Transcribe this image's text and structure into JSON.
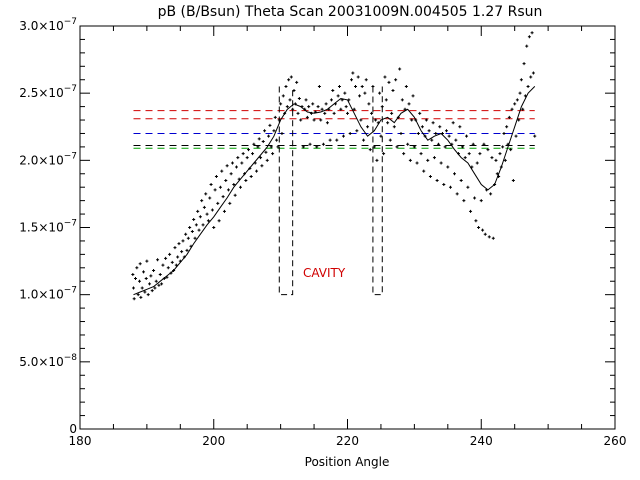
{
  "chart_data": {
    "type": "scatter",
    "title": "pB (B/Bsun) Theta Scan 20031009N.004505 1.27 Rsun",
    "xlabel": "Position Angle",
    "ylabel": "",
    "xlim": [
      180,
      260
    ],
    "ylim": [
      0,
      3e-07
    ],
    "grid": false,
    "x_ticks": [
      {
        "value": 180,
        "label": "180"
      },
      {
        "value": 200,
        "label": "200"
      },
      {
        "value": 220,
        "label": "220"
      },
      {
        "value": 240,
        "label": "240"
      },
      {
        "value": 260,
        "label": "260"
      }
    ],
    "y_ticks": [
      {
        "value": 0,
        "label": "0"
      },
      {
        "value": 5e-08,
        "label": "5.0×10"
      },
      {
        "value": 1e-07,
        "label": "1.0×10"
      },
      {
        "value": 1.5e-07,
        "label": "1.5×10"
      },
      {
        "value": 2e-07,
        "label": "2.0×10"
      },
      {
        "value": 2.5e-07,
        "label": "2.5×10"
      },
      {
        "value": 3e-07,
        "label": "3.0×10"
      }
    ],
    "y_tick_exponents": [
      "",
      "−8",
      "−7",
      "−7",
      "−7",
      "−7",
      "−7"
    ],
    "colors": {
      "axes": "#000000",
      "points": "#000000",
      "smooth_line": "#000000",
      "red": "#d00000",
      "blue": "#0000d0",
      "green": "#00a000",
      "box": "#000000"
    },
    "scatter_points": [
      [
        187.9,
        1.15e-07
      ],
      [
        188.0,
        1.05e-07
      ],
      [
        188.1,
        9.7e-08
      ],
      [
        188.3,
        1.12e-07
      ],
      [
        188.5,
        1.2e-07
      ],
      [
        188.7,
        1e-07
      ],
      [
        188.9,
        1.1e-07
      ],
      [
        189.0,
        1.23e-07
      ],
      [
        189.1,
        9.8e-08
      ],
      [
        189.3,
        1.05e-07
      ],
      [
        189.5,
        1.17e-07
      ],
      [
        189.7,
        1.02e-07
      ],
      [
        189.9,
        1.12e-07
      ],
      [
        190.0,
        1.25e-07
      ],
      [
        190.2,
        1e-07
      ],
      [
        190.4,
        1.08e-07
      ],
      [
        190.6,
        1.14e-07
      ],
      [
        190.8,
        1.03e-07
      ],
      [
        191.0,
        1.18e-07
      ],
      [
        191.2,
        1.05e-07
      ],
      [
        191.4,
        1.1e-07
      ],
      [
        191.6,
        1.26e-07
      ],
      [
        191.8,
        1.07e-07
      ],
      [
        192.0,
        1.15e-07
      ],
      [
        192.2,
        1.08e-07
      ],
      [
        192.4,
        1.22e-07
      ],
      [
        192.6,
        1.12e-07
      ],
      [
        192.8,
        1.27e-07
      ],
      [
        193.0,
        1.13e-07
      ],
      [
        193.2,
        1.2e-07
      ],
      [
        193.4,
        1.3e-07
      ],
      [
        193.6,
        1.16e-07
      ],
      [
        193.8,
        1.24e-07
      ],
      [
        194.0,
        1.18e-07
      ],
      [
        194.2,
        1.35e-07
      ],
      [
        194.4,
        1.22e-07
      ],
      [
        194.6,
        1.28e-07
      ],
      [
        194.8,
        1.38e-07
      ],
      [
        195.0,
        1.25e-07
      ],
      [
        195.2,
        1.32e-07
      ],
      [
        195.4,
        1.4e-07
      ],
      [
        195.6,
        1.28e-07
      ],
      [
        195.8,
        1.45e-07
      ],
      [
        196.0,
        1.33e-07
      ],
      [
        196.2,
        1.42e-07
      ],
      [
        196.4,
        1.5e-07
      ],
      [
        196.6,
        1.36e-07
      ],
      [
        196.8,
        1.47e-07
      ],
      [
        197.0,
        1.56e-07
      ],
      [
        197.2,
        1.42e-07
      ],
      [
        197.4,
        1.52e-07
      ],
      [
        197.6,
        1.62e-07
      ],
      [
        197.8,
        1.48e-07
      ],
      [
        198.0,
        1.58e-07
      ],
      [
        198.2,
        1.7e-07
      ],
      [
        198.4,
        1.52e-07
      ],
      [
        198.6,
        1.65e-07
      ],
      [
        198.8,
        1.75e-07
      ],
      [
        199.0,
        1.6e-07
      ],
      [
        199.2,
        1.55e-07
      ],
      [
        199.4,
        1.72e-07
      ],
      [
        199.6,
        1.82e-07
      ],
      [
        199.8,
        1.63e-07
      ],
      [
        200.0,
        1.5e-07
      ],
      [
        200.2,
        1.78e-07
      ],
      [
        200.4,
        1.88e-07
      ],
      [
        200.6,
        1.68e-07
      ],
      [
        200.8,
        1.55e-07
      ],
      [
        201.0,
        1.8e-07
      ],
      [
        201.2,
        1.92e-07
      ],
      [
        201.4,
        1.73e-07
      ],
      [
        201.6,
        1.62e-07
      ],
      [
        201.8,
        1.85e-07
      ],
      [
        202.0,
        1.96e-07
      ],
      [
        202.2,
        1.78e-07
      ],
      [
        202.4,
        1.68e-07
      ],
      [
        202.6,
        1.9e-07
      ],
      [
        202.8,
        1.98e-07
      ],
      [
        203.0,
        1.82e-07
      ],
      [
        203.2,
        1.74e-07
      ],
      [
        203.4,
        1.95e-07
      ],
      [
        203.6,
        2.02e-07
      ],
      [
        203.8,
        1.86e-07
      ],
      [
        204.0,
        1.8e-07
      ],
      [
        204.2,
        1.98e-07
      ],
      [
        204.4,
        2.05e-07
      ],
      [
        204.6,
        1.9e-07
      ],
      [
        204.8,
        1.85e-07
      ],
      [
        205.0,
        2.02e-07
      ],
      [
        205.2,
        2.08e-07
      ],
      [
        205.4,
        1.94e-07
      ],
      [
        205.6,
        1.88e-07
      ],
      [
        205.8,
        2.05e-07
      ],
      [
        206.0,
        2.12e-07
      ],
      [
        206.2,
        1.98e-07
      ],
      [
        206.4,
        1.92e-07
      ],
      [
        206.6,
        2.1e-07
      ],
      [
        206.8,
        2.16e-07
      ],
      [
        207.0,
        2.02e-07
      ],
      [
        207.2,
        1.96e-07
      ],
      [
        207.4,
        2.14e-07
      ],
      [
        207.6,
        2.22e-07
      ],
      [
        207.8,
        2.06e-07
      ],
      [
        208.0,
        2e-07
      ],
      [
        208.2,
        2.18e-07
      ],
      [
        208.4,
        2.26e-07
      ],
      [
        208.6,
        2.1e-07
      ],
      [
        208.8,
        2.05e-07
      ],
      [
        209.0,
        2.22e-07
      ],
      [
        209.2,
        2.32e-07
      ],
      [
        209.4,
        2.15e-07
      ],
      [
        209.6,
        2.1e-07
      ],
      [
        209.8,
        2.3e-07
      ],
      [
        210.0,
        2.42e-07
      ],
      [
        210.2,
        2.2e-07
      ],
      [
        210.4,
        2.48e-07
      ],
      [
        210.6,
        2.35e-07
      ],
      [
        210.8,
        2.55e-07
      ],
      [
        211.0,
        2.4e-07
      ],
      [
        211.2,
        2.6e-07
      ],
      [
        211.4,
        2.45e-07
      ],
      [
        211.6,
        2.62e-07
      ],
      [
        211.8,
        2.38e-07
      ],
      [
        212.0,
        2.52e-07
      ],
      [
        212.2,
        2.42e-07
      ],
      [
        212.4,
        2.58e-07
      ],
      [
        212.6,
        2.35e-07
      ],
      [
        212.8,
        2.46e-07
      ],
      [
        213.0,
        2.3e-07
      ],
      [
        213.2,
        2.4e-07
      ],
      [
        213.4,
        2.1e-07
      ],
      [
        213.6,
        2.38e-07
      ],
      [
        213.8,
        2.45e-07
      ],
      [
        214.0,
        2.32e-07
      ],
      [
        214.2,
        2.4e-07
      ],
      [
        214.4,
        2.12e-07
      ],
      [
        214.6,
        2.35e-07
      ],
      [
        214.8,
        2.42e-07
      ],
      [
        215.0,
        2.3e-07
      ],
      [
        215.2,
        2.36e-07
      ],
      [
        215.4,
        2.1e-07
      ],
      [
        215.6,
        2.4e-07
      ],
      [
        215.8,
        2.55e-07
      ],
      [
        216.0,
        2.3e-07
      ],
      [
        216.2,
        2.38e-07
      ],
      [
        216.4,
        2.12e-07
      ],
      [
        216.6,
        2.35e-07
      ],
      [
        216.8,
        2.42e-07
      ],
      [
        217.0,
        2.28e-07
      ],
      [
        217.2,
        2.38e-07
      ],
      [
        217.4,
        2.15e-07
      ],
      [
        217.6,
        2.45e-07
      ],
      [
        217.8,
        2.52e-07
      ],
      [
        218.0,
        2.35e-07
      ],
      [
        218.2,
        2.42e-07
      ],
      [
        218.4,
        2.15e-07
      ],
      [
        218.6,
        2.48e-07
      ],
      [
        218.8,
        2.55e-07
      ],
      [
        219.0,
        2.38e-07
      ],
      [
        219.2,
        2.45e-07
      ],
      [
        219.4,
        2.18e-07
      ],
      [
        219.6,
        2.5e-07
      ],
      [
        219.8,
        2.4e-07
      ],
      [
        220.0,
        2.35e-07
      ],
      [
        220.2,
        2.45e-07
      ],
      [
        220.4,
        2.2e-07
      ],
      [
        220.6,
        2.6e-07
      ],
      [
        220.8,
        2.65e-07
      ],
      [
        221.0,
        2.38e-07
      ],
      [
        221.2,
        2.55e-07
      ],
      [
        221.4,
        2.22e-07
      ],
      [
        221.6,
        2.62e-07
      ],
      [
        221.8,
        2.48e-07
      ],
      [
        222.0,
        2.3e-07
      ],
      [
        222.2,
        2.55e-07
      ],
      [
        222.4,
        2.15e-07
      ],
      [
        222.6,
        2.5e-07
      ],
      [
        222.8,
        2.6e-07
      ],
      [
        223.0,
        2.25e-07
      ],
      [
        223.2,
        2.42e-07
      ],
      [
        223.4,
        2.08e-07
      ],
      [
        223.6,
        2.35e-07
      ],
      [
        223.8,
        2.55e-07
      ],
      [
        224.0,
        2.1e-07
      ],
      [
        224.2,
        2.3e-07
      ],
      [
        224.4,
        2e-07
      ],
      [
        224.6,
        2.28e-07
      ],
      [
        224.8,
        2.5e-07
      ],
      [
        225.0,
        2.18e-07
      ],
      [
        225.2,
        2.4e-07
      ],
      [
        225.4,
        2.05e-07
      ],
      [
        225.6,
        2.62e-07
      ],
      [
        225.8,
        2.45e-07
      ],
      [
        226.0,
        2.28e-07
      ],
      [
        226.2,
        2.58e-07
      ],
      [
        226.4,
        2.15e-07
      ],
      [
        226.6,
        2.35e-07
      ],
      [
        226.8,
        2.52e-07
      ],
      [
        227.0,
        2.25e-07
      ],
      [
        227.2,
        2.6e-07
      ],
      [
        227.4,
        2.1e-07
      ],
      [
        227.6,
        2.32e-07
      ],
      [
        227.8,
        2.68e-07
      ],
      [
        228.0,
        2.2e-07
      ],
      [
        228.2,
        2.45e-07
      ],
      [
        228.4,
        2.05e-07
      ],
      [
        228.6,
        2.38e-07
      ],
      [
        228.8,
        2.55e-07
      ],
      [
        229.0,
        2.12e-07
      ],
      [
        229.2,
        2.42e-07
      ],
      [
        229.4,
        2e-07
      ],
      [
        229.6,
        2.3e-07
      ],
      [
        229.8,
        2.48e-07
      ],
      [
        230.0,
        2.1e-07
      ],
      [
        230.2,
        2.3e-07
      ],
      [
        230.4,
        1.98e-07
      ],
      [
        230.6,
        2.2e-07
      ],
      [
        230.8,
        2.35e-07
      ],
      [
        231.0,
        2.05e-07
      ],
      [
        231.2,
        2.25e-07
      ],
      [
        231.4,
        1.92e-07
      ],
      [
        231.6,
        2.18e-07
      ],
      [
        231.8,
        2.3e-07
      ],
      [
        232.0,
        2e-07
      ],
      [
        232.2,
        2.22e-07
      ],
      [
        232.4,
        1.88e-07
      ],
      [
        232.6,
        2.15e-07
      ],
      [
        232.8,
        2.28e-07
      ],
      [
        233.0,
        2.02e-07
      ],
      [
        233.2,
        2.2e-07
      ],
      [
        233.4,
        1.85e-07
      ],
      [
        233.6,
        2.12e-07
      ],
      [
        233.8,
        2.25e-07
      ],
      [
        234.0,
        1.98e-07
      ],
      [
        234.2,
        2.2e-07
      ],
      [
        234.4,
        1.82e-07
      ],
      [
        234.6,
        2.1e-07
      ],
      [
        234.8,
        2.22e-07
      ],
      [
        235.0,
        1.95e-07
      ],
      [
        235.2,
        2.18e-07
      ],
      [
        235.4,
        1.8e-07
      ],
      [
        235.6,
        2.12e-07
      ],
      [
        235.8,
        2.28e-07
      ],
      [
        236.0,
        1.9e-07
      ],
      [
        236.2,
        2.15e-07
      ],
      [
        236.4,
        1.75e-07
      ],
      [
        236.6,
        2.05e-07
      ],
      [
        236.8,
        2.25e-07
      ],
      [
        237.0,
        1.85e-07
      ],
      [
        237.2,
        2.1e-07
      ],
      [
        237.4,
        1.7e-07
      ],
      [
        237.6,
        2.02e-07
      ],
      [
        237.8,
        2.18e-07
      ],
      [
        238.0,
        1.8e-07
      ],
      [
        238.2,
        2.05e-07
      ],
      [
        238.4,
        1.62e-07
      ],
      [
        238.6,
        1.95e-07
      ],
      [
        238.8,
        2.12e-07
      ],
      [
        239.0,
        1.72e-07
      ],
      [
        239.2,
        1.55e-07
      ],
      [
        239.4,
        1.98e-07
      ],
      [
        239.6,
        1.5e-07
      ],
      [
        239.8,
        2.05e-07
      ],
      [
        240.0,
        1.7e-07
      ],
      [
        240.2,
        1.48e-07
      ],
      [
        240.4,
        2.12e-07
      ],
      [
        240.6,
        1.45e-07
      ],
      [
        240.8,
        1.78e-07
      ],
      [
        241.0,
        2.08e-07
      ],
      [
        241.2,
        1.43e-07
      ],
      [
        241.4,
        1.75e-07
      ],
      [
        241.6,
        2.02e-07
      ],
      [
        241.8,
        1.42e-07
      ],
      [
        242.0,
        1.82e-07
      ],
      [
        242.2,
        2e-07
      ],
      [
        242.4,
        1.9e-07
      ],
      [
        242.6,
        1.88e-07
      ],
      [
        242.8,
        2.05e-07
      ],
      [
        243.0,
        1.95e-07
      ],
      [
        243.2,
        2.1e-07
      ],
      [
        243.4,
        2.2e-07
      ],
      [
        243.6,
        2e-07
      ],
      [
        243.8,
        2.25e-07
      ],
      [
        244.0,
        2.12e-07
      ],
      [
        244.2,
        2.32e-07
      ],
      [
        244.4,
        2.08e-07
      ],
      [
        244.6,
        2.38e-07
      ],
      [
        244.8,
        1.85e-07
      ],
      [
        245.0,
        2.42e-07
      ],
      [
        245.2,
        2.18e-07
      ],
      [
        245.4,
        2.45e-07
      ],
      [
        245.6,
        2.3e-07
      ],
      [
        245.8,
        2.5e-07
      ],
      [
        246.0,
        2.6e-07
      ],
      [
        246.2,
        2.38e-07
      ],
      [
        246.4,
        2.72e-07
      ],
      [
        246.6,
        2.48e-07
      ],
      [
        246.8,
        2.85e-07
      ],
      [
        247.0,
        2.55e-07
      ],
      [
        247.2,
        2.92e-07
      ],
      [
        247.4,
        2.62e-07
      ],
      [
        247.6,
        2.95e-07
      ],
      [
        247.8,
        2.65e-07
      ],
      [
        248.0,
        2.18e-07
      ]
    ],
    "smooth_line": [
      [
        188,
        1e-07
      ],
      [
        189,
        1.02e-07
      ],
      [
        190,
        1.04e-07
      ],
      [
        191,
        1.06e-07
      ],
      [
        192,
        1.1e-07
      ],
      [
        193,
        1.14e-07
      ],
      [
        194,
        1.18e-07
      ],
      [
        195,
        1.24e-07
      ],
      [
        196,
        1.3e-07
      ],
      [
        197,
        1.38e-07
      ],
      [
        198,
        1.45e-07
      ],
      [
        199,
        1.52e-07
      ],
      [
        200,
        1.58e-07
      ],
      [
        201,
        1.65e-07
      ],
      [
        202,
        1.72e-07
      ],
      [
        203,
        1.8e-07
      ],
      [
        204,
        1.86e-07
      ],
      [
        205,
        1.92e-07
      ],
      [
        206,
        1.98e-07
      ],
      [
        207,
        2.04e-07
      ],
      [
        208,
        2.1e-07
      ],
      [
        209,
        2.18e-07
      ],
      [
        210,
        2.3e-07
      ],
      [
        211,
        2.38e-07
      ],
      [
        212,
        2.42e-07
      ],
      [
        213,
        2.4e-07
      ],
      [
        214,
        2.36e-07
      ],
      [
        215,
        2.35e-07
      ],
      [
        216,
        2.36e-07
      ],
      [
        217,
        2.38e-07
      ],
      [
        218,
        2.42e-07
      ],
      [
        219,
        2.46e-07
      ],
      [
        220,
        2.45e-07
      ],
      [
        221,
        2.35e-07
      ],
      [
        222,
        2.25e-07
      ],
      [
        223,
        2.18e-07
      ],
      [
        224,
        2.22e-07
      ],
      [
        225,
        2.3e-07
      ],
      [
        226,
        2.32e-07
      ],
      [
        227,
        2.28e-07
      ],
      [
        228,
        2.35e-07
      ],
      [
        229,
        2.38e-07
      ],
      [
        230,
        2.32e-07
      ],
      [
        231,
        2.22e-07
      ],
      [
        232,
        2.15e-07
      ],
      [
        233,
        2.18e-07
      ],
      [
        234,
        2.2e-07
      ],
      [
        235,
        2.15e-07
      ],
      [
        236,
        2.08e-07
      ],
      [
        237,
        2.02e-07
      ],
      [
        238,
        1.98e-07
      ],
      [
        239,
        1.9e-07
      ],
      [
        240,
        1.82e-07
      ],
      [
        241,
        1.78e-07
      ],
      [
        242,
        1.82e-07
      ],
      [
        243,
        1.95e-07
      ],
      [
        244,
        2.1e-07
      ],
      [
        245,
        2.25e-07
      ],
      [
        246,
        2.4e-07
      ],
      [
        247,
        2.5e-07
      ],
      [
        248,
        2.55e-07
      ]
    ],
    "horizontal_lines": [
      {
        "y": 2.37e-07,
        "color": "red"
      },
      {
        "y": 2.31e-07,
        "color": "red"
      },
      {
        "y": 2.2e-07,
        "color": "blue"
      },
      {
        "y": 2.11e-07,
        "color": "black"
      },
      {
        "y": 2.09e-07,
        "color": "green"
      }
    ],
    "h_line_x_range": [
      188,
      248
    ],
    "cavity_boxes": [
      {
        "x1": 209.8,
        "x2": 211.8,
        "y_bottom": 1e-07,
        "y_top": 2.55e-07
      },
      {
        "x1": 223.8,
        "x2": 225.2,
        "y_bottom": 1e-07,
        "y_top": 2.55e-07
      }
    ],
    "annotation": {
      "text": "CAVITY",
      "x": 216.5,
      "y": 1.13e-07
    }
  }
}
